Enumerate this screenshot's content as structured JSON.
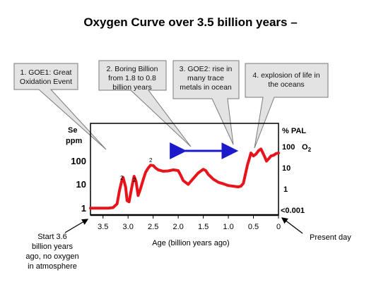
{
  "title": "Oxygen Curve over 3.5 billion years –",
  "chart_data": {
    "type": "line",
    "xlabel": "Age (billion years ago)",
    "x_ticks": [
      "3.5",
      "3.0",
      "2.5",
      "2.0",
      "1.5",
      "1.0",
      "0.5",
      "0"
    ],
    "xlim": [
      3.75,
      0
    ],
    "left_axis": {
      "label_line1": "Se",
      "label_line2": "ppm",
      "ticks": [
        "100",
        "10",
        "1"
      ]
    },
    "right_axis": {
      "label": "% PAL",
      "o2_label": "O",
      "o2_sub": "2",
      "ticks": [
        "100",
        "10",
        "1",
        "<0.001"
      ]
    },
    "series": [
      {
        "color": "#e8141b",
        "x": [
          3.75,
          3.55,
          3.4,
          3.3,
          3.22,
          3.17,
          3.13,
          3.1,
          3.05,
          3.02,
          2.98,
          2.92,
          2.88,
          2.84,
          2.8,
          2.75,
          2.7,
          2.65,
          2.6,
          2.55,
          2.5,
          2.45,
          2.4,
          2.3,
          2.2,
          2.1,
          2.0,
          1.95,
          1.9,
          1.8,
          1.7,
          1.6,
          1.5,
          1.45,
          1.4,
          1.3,
          1.2,
          1.1,
          1.0,
          0.9,
          0.8,
          0.75,
          0.7,
          0.66,
          0.62,
          0.58,
          0.55,
          0.5,
          0.45,
          0.4,
          0.35,
          0.3,
          0.27,
          0.24,
          0.2,
          0.15,
          0.1,
          0.05,
          0.0
        ],
        "y": [
          0.85,
          0.85,
          0.85,
          0.9,
          1.3,
          5,
          12,
          18,
          7,
          1.8,
          1.6,
          8,
          20,
          12,
          3,
          6,
          14,
          30,
          45,
          60,
          58,
          45,
          38,
          33,
          34,
          38,
          35,
          22,
          13,
          9,
          16,
          28,
          40,
          35,
          24,
          15,
          11,
          9.5,
          8,
          7.5,
          7,
          7.5,
          10,
          25,
          60,
          120,
          200,
          150,
          180,
          250,
          300,
          180,
          130,
          90,
          110,
          150,
          160,
          190,
          200
        ]
      }
    ],
    "annotations": [
      {
        "line1": "1. GOE1: Great",
        "line2": "Oxidation Event"
      },
      {
        "line1": "2. Boring Billion",
        "line2": "from 1.8 to 0.8",
        "line3": "billion years"
      },
      {
        "line1": "3. GOE2: rise in",
        "line2": "many trace",
        "line3": "metals in ocean"
      },
      {
        "line1": "4. explosion of life in",
        "line2": "the oceans"
      }
    ],
    "small_marks": [
      "2",
      "2",
      "2"
    ],
    "range_arrow": {
      "from": 2.0,
      "to": 0.8,
      "color": "#1b1bcc"
    }
  },
  "notes": {
    "start": [
      "Start 3.6",
      "billion years",
      "ago, no oxygen",
      "in atmosphere"
    ],
    "present": "Present day"
  }
}
